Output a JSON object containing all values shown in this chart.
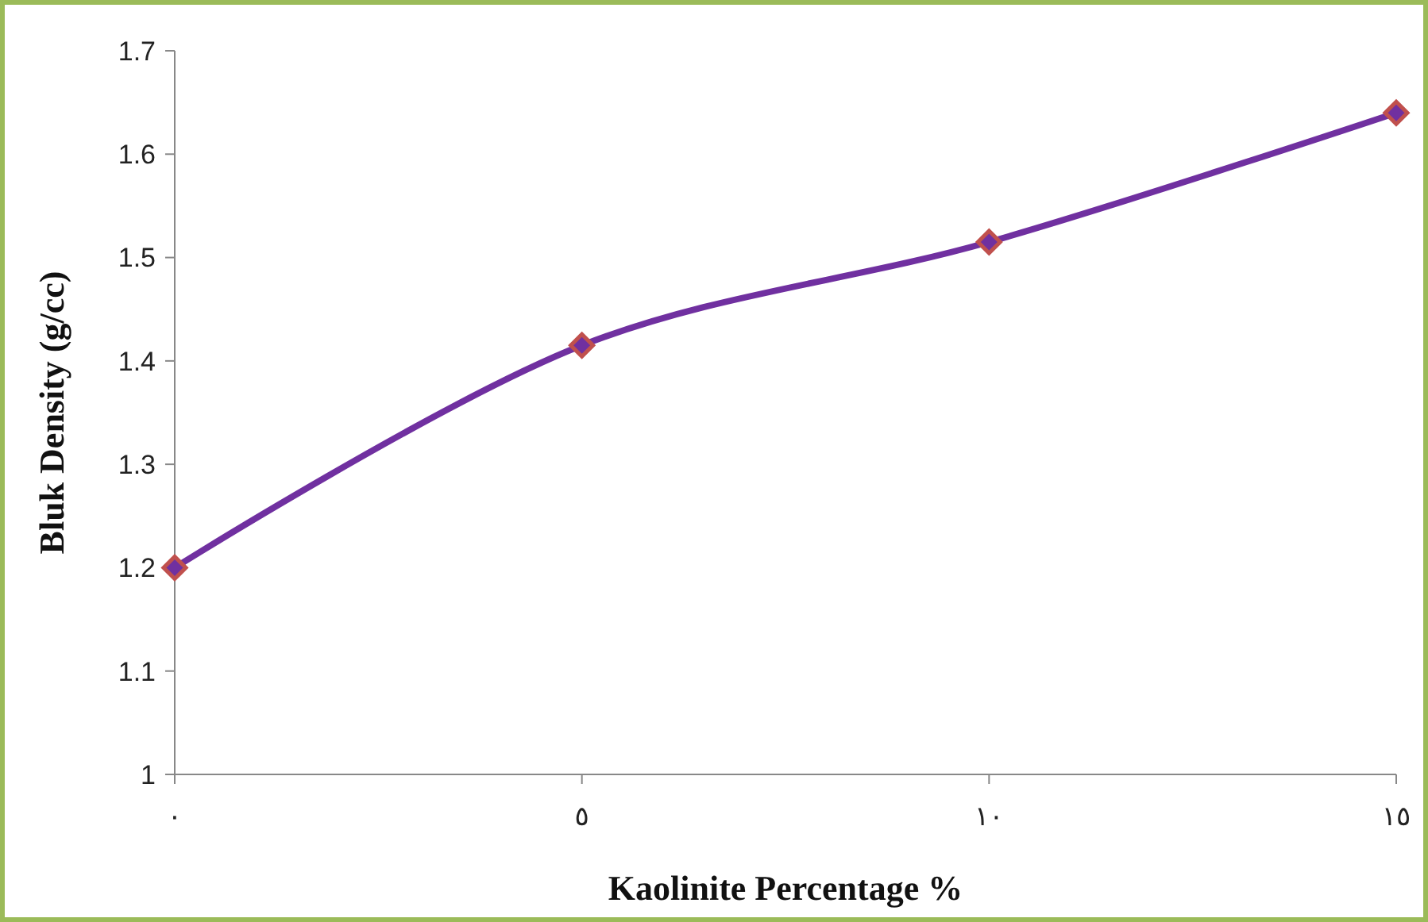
{
  "chart_data": {
    "type": "line",
    "xlabel": "Kaolinite Percentage %",
    "ylabel": "Bluk Density (g/cc)",
    "categories": [
      "٠",
      "٥",
      "١٠",
      "١٥"
    ],
    "series": [
      {
        "color": "#7030a0",
        "values": [
          1.2,
          1.415,
          1.515,
          1.64
        ]
      }
    ],
    "ylim": [
      1,
      1.7
    ],
    "yticks": [
      1,
      1.1,
      1.2,
      1.3,
      1.4,
      1.5,
      1.6,
      1.7
    ],
    "marker": "diamond",
    "line_style": "solid",
    "grid": false
  }
}
